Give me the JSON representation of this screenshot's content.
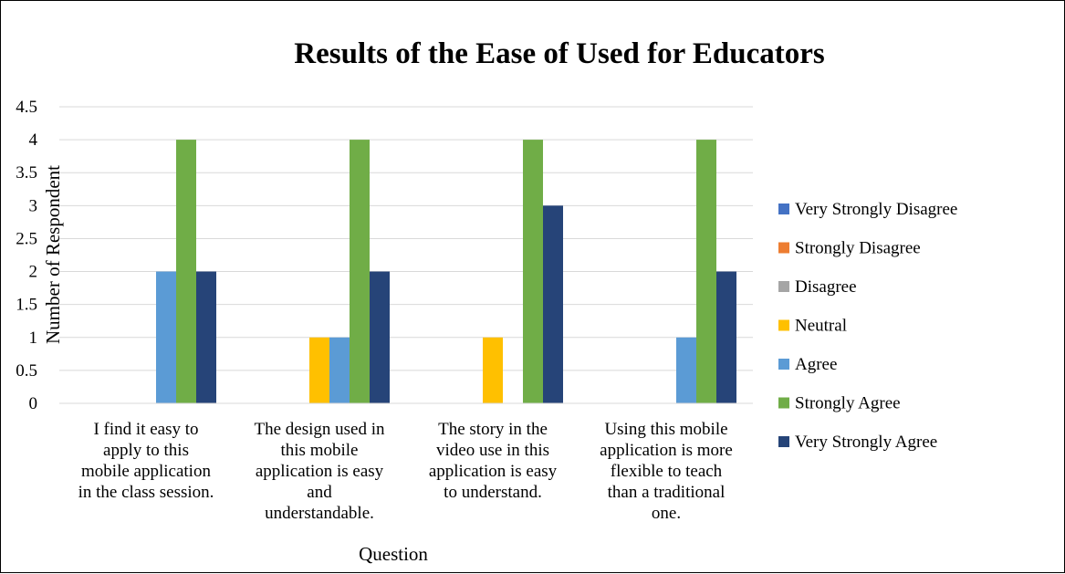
{
  "chart_data": {
    "type": "bar",
    "title": "Results of the Ease of Used for Educators",
    "xlabel": "Question",
    "ylabel": "Number of Respondent",
    "ylim": [
      0,
      4.5
    ],
    "yticks": [
      "0",
      "0.5",
      "1",
      "1.5",
      "2",
      "2.5",
      "3",
      "3.5",
      "4",
      "4.5"
    ],
    "grid": true,
    "legend_position": "right",
    "categories": [
      [
        "I find it easy to",
        "apply to this",
        "mobile application",
        "in the class session."
      ],
      [
        "The design used in",
        "this mobile",
        "application is easy",
        "and",
        "understandable."
      ],
      [
        "The story in the",
        "video use in this",
        "application is easy",
        "to understand."
      ],
      [
        "Using this mobile",
        "application is more",
        "flexible to teach",
        "than a traditional",
        "one."
      ]
    ],
    "series": [
      {
        "name": "Very Strongly Disagree",
        "color": "#4472C4",
        "values": [
          0,
          0,
          0,
          0
        ]
      },
      {
        "name": "Strongly Disagree",
        "color": "#ED7D31",
        "values": [
          0,
          0,
          0,
          0
        ]
      },
      {
        "name": "Disagree",
        "color": "#A5A5A5",
        "values": [
          0,
          0,
          0,
          0
        ]
      },
      {
        "name": "Neutral",
        "color": "#FFC000",
        "values": [
          0,
          1,
          1,
          0
        ]
      },
      {
        "name": "Agree",
        "color": "#5B9BD5",
        "values": [
          2,
          1,
          0,
          1
        ]
      },
      {
        "name": "Strongly Agree",
        "color": "#70AD47",
        "values": [
          4,
          4,
          4,
          4
        ]
      },
      {
        "name": "Very Strongly Agree",
        "color": "#264478",
        "values": [
          2,
          2,
          3,
          2
        ]
      }
    ]
  }
}
